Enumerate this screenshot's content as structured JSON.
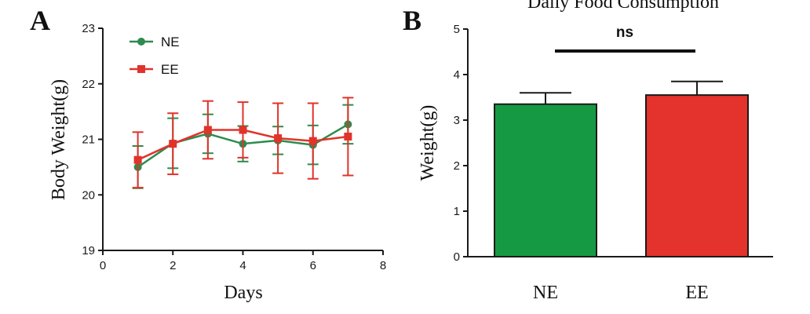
{
  "chart_data": [
    {
      "panel": "A",
      "type": "line",
      "title": "",
      "xlabel": "Days",
      "ylabel": "Body Weight(g)",
      "xlim": [
        0,
        8
      ],
      "ylim": [
        19,
        23
      ],
      "xticks": [
        0,
        2,
        4,
        6,
        8
      ],
      "yticks": [
        19,
        20,
        21,
        22,
        23
      ],
      "legend": "top-left",
      "grid": false,
      "x": [
        1,
        2,
        3,
        4,
        5,
        6,
        7
      ],
      "series": [
        {
          "name": "NE",
          "color": "#2e8b4e",
          "marker": "circle",
          "values": [
            20.5,
            20.93,
            21.1,
            20.92,
            20.98,
            20.9,
            21.27
          ],
          "error": [
            0.38,
            0.45,
            0.35,
            0.32,
            0.25,
            0.35,
            0.35
          ]
        },
        {
          "name": "EE",
          "color": "#e0332a",
          "marker": "square",
          "values": [
            20.63,
            20.92,
            21.17,
            21.17,
            21.02,
            20.97,
            21.05
          ],
          "error": [
            0.5,
            0.55,
            0.52,
            0.5,
            0.63,
            0.68,
            0.7
          ]
        }
      ]
    },
    {
      "panel": "B",
      "type": "bar",
      "title": "Daily Food Consumption",
      "xlabel": "",
      "ylabel": "Weight(g)",
      "ylim": [
        0,
        5
      ],
      "yticks": [
        0,
        1,
        2,
        3,
        4,
        5
      ],
      "grid": false,
      "categories": [
        "NE",
        "EE"
      ],
      "values": [
        3.35,
        3.55
      ],
      "error": [
        0.25,
        0.3
      ],
      "colors": [
        "#159a43",
        "#e3332c"
      ],
      "annotation": "ns"
    }
  ]
}
